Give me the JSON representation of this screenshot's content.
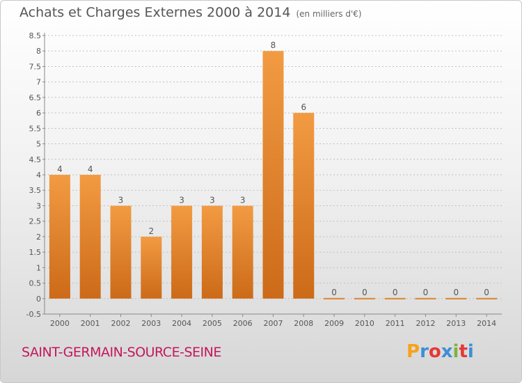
{
  "title": "Achats et Charges Externes 2000 à 2014",
  "subtitle": "(en milliers d'€)",
  "footer": {
    "commune": "SAINT-GERMAIN-SOURCE-SEINE",
    "brand": "Proxiti",
    "brand_colors": [
      "#f7a21b",
      "#3b8fd8",
      "#e53935",
      "#3b8fd8",
      "#7cb342",
      "#e53935",
      "#3b8fd8"
    ]
  },
  "colors": {
    "bar": "#f29b43",
    "bar_dark": "#cc6a18",
    "axis": "#888888",
    "grid": "#c0c0c0",
    "text": "#555555",
    "commune": "#c2185b"
  },
  "chart_data": {
    "type": "bar",
    "categories": [
      "2000",
      "2001",
      "2002",
      "2003",
      "2004",
      "2005",
      "2006",
      "2007",
      "2008",
      "2009",
      "2010",
      "2011",
      "2012",
      "2013",
      "2014"
    ],
    "values": [
      4,
      4,
      3,
      2,
      3,
      3,
      3,
      8,
      6,
      0,
      0,
      0,
      0,
      0,
      0
    ],
    "data_labels": [
      "4",
      "4",
      "3",
      "2",
      "3",
      "3",
      "3",
      "8",
      "6",
      "0",
      "0",
      "0",
      "0",
      "0",
      "0"
    ],
    "ylim": [
      -0.5,
      8.5
    ],
    "yticks": [
      -0.5,
      0,
      0.5,
      1,
      1.5,
      2,
      2.5,
      3,
      3.5,
      4,
      4.5,
      5,
      5.5,
      6,
      6.5,
      7,
      7.5,
      8,
      8.5
    ],
    "ytick_labels": [
      "-0.5",
      "0",
      "0.5",
      "1",
      "1.5",
      "2",
      "2.5",
      "3",
      "3.5",
      "4",
      "4.5",
      "5",
      "5.5",
      "6",
      "6.5",
      "7",
      "7.5",
      "8",
      "8.5"
    ],
    "grid": true,
    "grid_axis": "y"
  }
}
